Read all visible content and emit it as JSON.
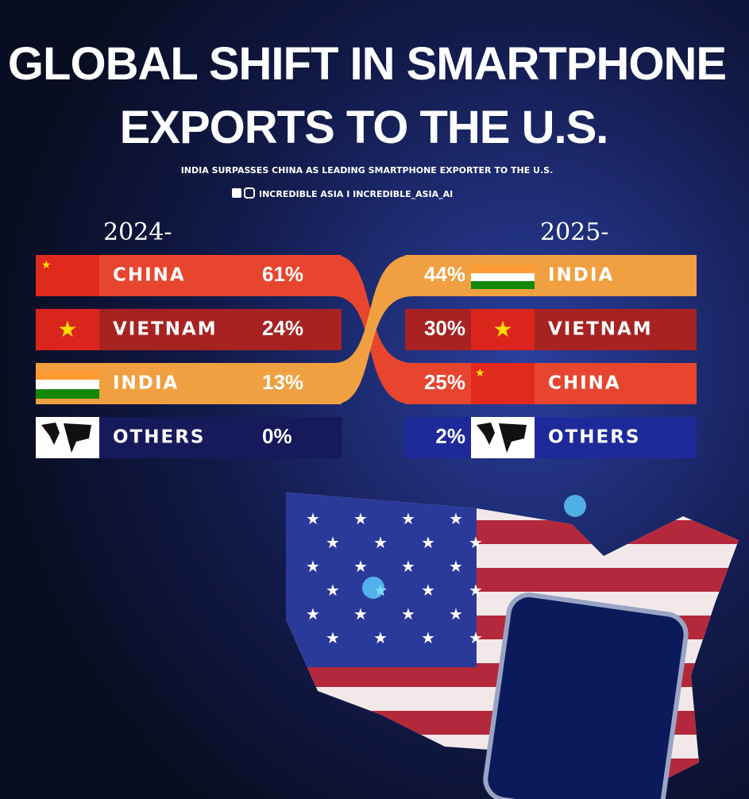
{
  "header": {
    "title_line1": "GLOBAL SHIFT IN SMARTPHONE",
    "title_line2": "EXPORTS TO THE U.S.",
    "subtitle": "INDIA SURPASSES CHINA AS LEADING SMARTPHONE EXPORTER TO THE U.S.",
    "credit": "INCREDIBLE ASIA I INCREDIBLE_ASIA_AI"
  },
  "left": {
    "year": "2024-",
    "rows": [
      {
        "country": "CHINA",
        "share": "61%"
      },
      {
        "country": "VIETNAM",
        "share": "24%"
      },
      {
        "country": "INDIA",
        "share": "13%"
      },
      {
        "country": "OTHERS",
        "share": "0%"
      }
    ]
  },
  "right": {
    "year": "2025-",
    "rows": [
      {
        "country": "INDIA",
        "share": "44%"
      },
      {
        "country": "VIETNAM",
        "share": "30%"
      },
      {
        "country": "CHINA",
        "share": "25%"
      },
      {
        "country": "OTHERS",
        "share": "2%"
      }
    ]
  }
}
